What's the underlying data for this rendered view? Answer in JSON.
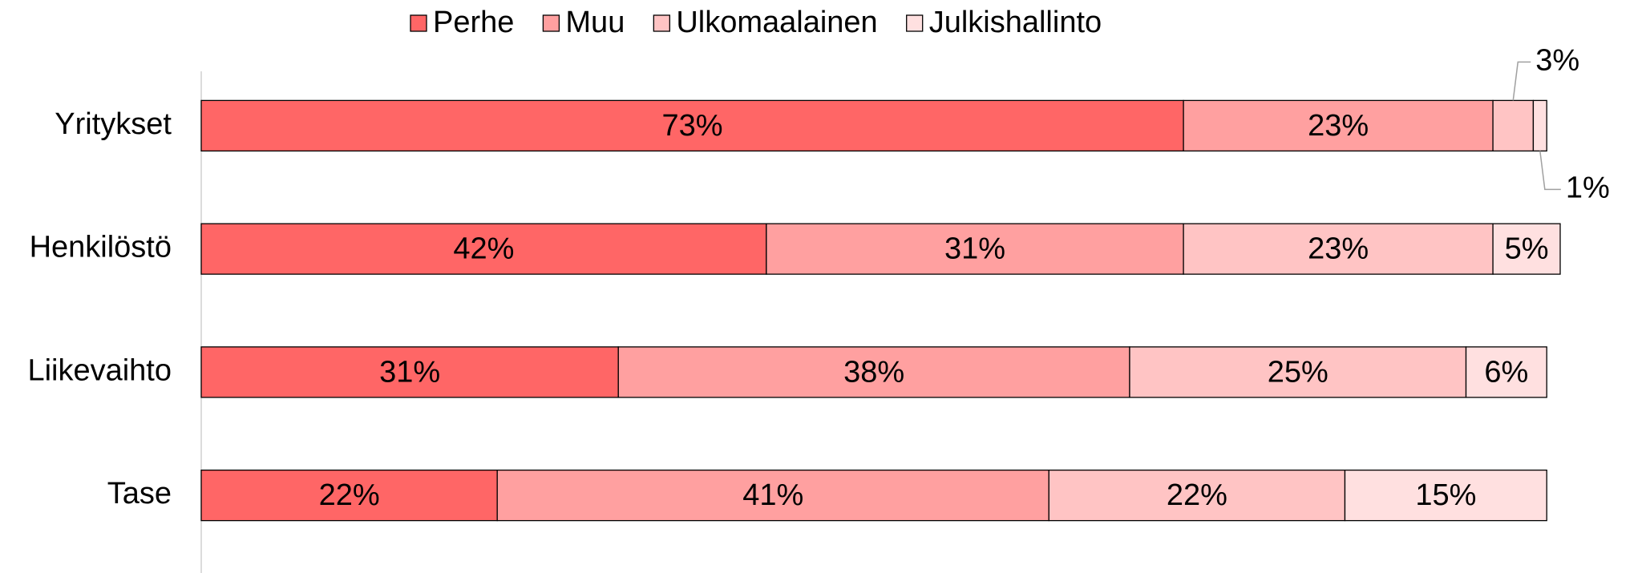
{
  "chart_data": {
    "type": "stacked_barh",
    "categories": [
      "Yritykset",
      "Henkilöstö",
      "Liikevaihto",
      "Tase"
    ],
    "series": [
      {
        "name": "Perhe",
        "color": "#ff6666",
        "values": [
          73,
          42,
          31,
          22
        ],
        "value_labels": [
          "73%",
          "42%",
          "31%",
          "22%"
        ]
      },
      {
        "name": "Muu",
        "color": "#ffa0a0",
        "values": [
          23,
          31,
          38,
          41
        ],
        "value_labels": [
          "23%",
          "31%",
          "38%",
          "41%"
        ]
      },
      {
        "name": "Ulkomaalainen",
        "color": "#ffc4c4",
        "values": [
          3,
          23,
          25,
          22
        ],
        "value_labels": [
          "3%",
          "23%",
          "25%",
          "22%"
        ]
      },
      {
        "name": "Julkishallinto",
        "color": "#ffe0e0",
        "values": [
          1,
          5,
          6,
          15
        ],
        "value_labels": [
          "1%",
          "5%",
          "6%",
          "15%"
        ]
      }
    ],
    "legend": "top"
  }
}
